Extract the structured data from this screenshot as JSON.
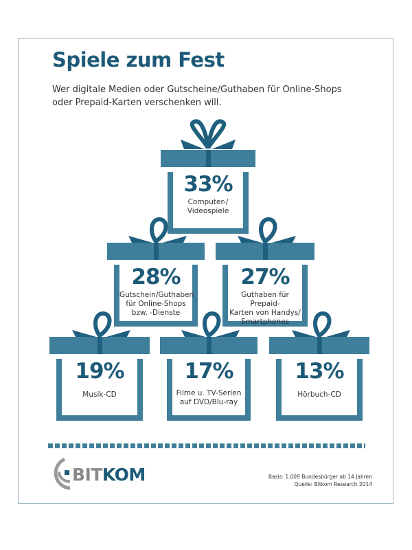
{
  "header": {
    "title": "Spiele zum Fest",
    "subtitle_line1": "Wer digitale Medien oder Gutscheine/Guthaben für Online-Shops",
    "subtitle_line2": "oder Prepaid-Karten verschenken will."
  },
  "gifts": [
    {
      "pct": "33%",
      "l1": "Computer-/",
      "l2": "Videospiele",
      "l3": ""
    },
    {
      "pct": "28%",
      "l1": "Gutschein/Guthaben",
      "l2": "für Online-Shops",
      "l3": "bzw. -Dienste"
    },
    {
      "pct": "27%",
      "l1": "Guthaben für Prepaid-",
      "l2": "Karten von Handys/",
      "l3": "Smartphones"
    },
    {
      "pct": "19%",
      "l1": "Musik-CD",
      "l2": "",
      "l3": ""
    },
    {
      "pct": "17%",
      "l1": "Filme u. TV-Serien",
      "l2": "auf DVD/Blu-ray",
      "l3": ""
    },
    {
      "pct": "13%",
      "l1": "Hörbuch-CD",
      "l2": "",
      "l3": ""
    }
  ],
  "footer": {
    "logo_a": "BIT",
    "logo_b": "KOM",
    "basis": "Basis: 1.009 Bundesbürger ab 14 Jahren",
    "quelle": "Quelle: Bitkom Research 2014"
  },
  "colors": {
    "accent": "#3f7f9b",
    "dark": "#1d5a78"
  },
  "chart_data": {
    "type": "bar",
    "title": "Spiele zum Fest",
    "categories": [
      "Computer-/Videospiele",
      "Gutschein/Guthaben für Online-Shops bzw. -Dienste",
      "Guthaben für Prepaid-Karten von Handys/Smartphones",
      "Musik-CD",
      "Filme u. TV-Serien auf DVD/Blu-ray",
      "Hörbuch-CD"
    ],
    "values": [
      33,
      28,
      27,
      19,
      17,
      13
    ],
    "unit": "%"
  }
}
